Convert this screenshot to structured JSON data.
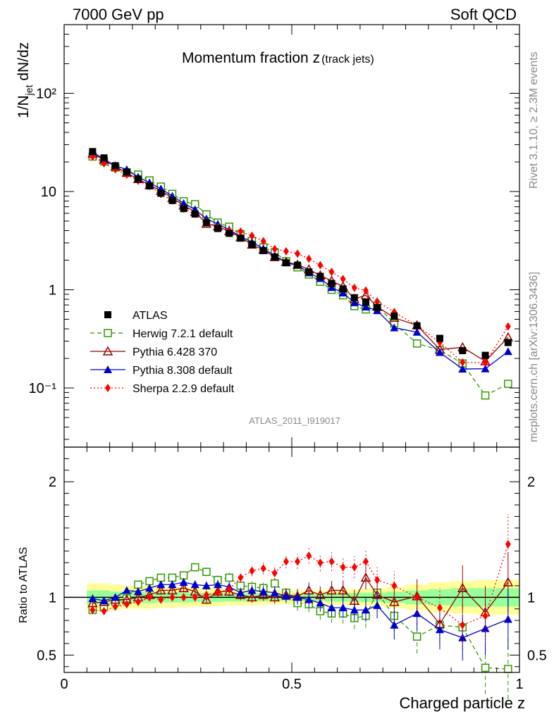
{
  "header": {
    "beam": "7000 GeV pp",
    "group": "Soft QCD"
  },
  "side": {
    "rivet": "Rivet 3.1.10, ≥ 2.3M events",
    "mcplots": "mcplots.cern.ch [arXiv:1306.3436]"
  },
  "chart_data": {
    "type": "scatter",
    "title": "Momentum fraction z",
    "title_sub": "(track jets)",
    "analysis_id": "ATLAS_2011_I919017",
    "ylabel_a": "1/N",
    "ylabel_sub": "jet",
    "ylabel_b": " dN/dz",
    "ratio_ylabel": "Ratio to ATLAS",
    "xlabel": "Charged particle z",
    "xlim": [
      0,
      1
    ],
    "ylim": [
      0.025,
      500
    ],
    "yscale": "log",
    "ratio_ylim": [
      0.35,
      2.3
    ],
    "x_ticks": [
      "0",
      "0.5",
      "1"
    ],
    "y_ticks": [
      "10⁻¹",
      "1",
      "10",
      "10²"
    ],
    "ratio_ticks": [
      "0.5",
      "1",
      "2"
    ],
    "legend_position": "lower-left",
    "x": [
      0.0625,
      0.0875,
      0.1125,
      0.1375,
      0.1625,
      0.1875,
      0.2125,
      0.2375,
      0.2625,
      0.2875,
      0.3125,
      0.3375,
      0.3625,
      0.3875,
      0.4125,
      0.4375,
      0.4625,
      0.4875,
      0.5125,
      0.5375,
      0.5625,
      0.5875,
      0.6125,
      0.6375,
      0.6625,
      0.6875,
      0.725,
      0.775,
      0.825,
      0.875,
      0.925,
      0.975
    ],
    "atlas": {
      "name": "ATLAS",
      "color": "#000000",
      "values": [
        25.5,
        22,
        18.3,
        15.8,
        13.4,
        11.4,
        9.6,
        8.1,
        6.7,
        5.9,
        4.8,
        4.2,
        3.75,
        3.35,
        2.88,
        2.5,
        2.15,
        1.88,
        1.78,
        1.52,
        1.37,
        1.16,
        1.02,
        0.83,
        0.75,
        0.66,
        0.54,
        0.43,
        0.32,
        0.24,
        0.215,
        0.29
      ]
    },
    "series": [
      {
        "name": "Herwig 7.2.1 default",
        "color": "#339900",
        "marker": "open-square",
        "dash": "6,4",
        "ratio": [
          0.89,
          0.92,
          0.96,
          0.99,
          1.11,
          1.14,
          1.17,
          1.17,
          1.19,
          1.26,
          1.22,
          1.15,
          1.17,
          1.1,
          1.09,
          1.08,
          1.12,
          1.04,
          0.95,
          0.94,
          0.88,
          0.86,
          0.86,
          0.82,
          0.84,
          1.04,
          0.84,
          0.66,
          0.76,
          0.74,
          0.39,
          0.38
        ]
      },
      {
        "name": "Pythia 6.428 370",
        "color": "#990000",
        "marker": "open-triangle",
        "dash": "",
        "ratio": [
          0.95,
          0.96,
          0.98,
          0.98,
          1.0,
          1.02,
          1.06,
          1.06,
          1.08,
          1.05,
          0.98,
          1.05,
          1.05,
          1.02,
          1.0,
          1.02,
          1.0,
          1.02,
          1.01,
          1.06,
          1.02,
          1.06,
          1.06,
          0.97,
          1.17,
          1.02,
          0.96,
          1.01,
          0.77,
          1.08,
          0.87,
          1.13
        ]
      },
      {
        "name": "Pythia 8.308 default",
        "color": "#0000cc",
        "marker": "triangle",
        "dash": "",
        "ratio": [
          0.99,
          0.97,
          1.0,
          1.06,
          1.05,
          1.08,
          1.11,
          1.11,
          1.13,
          1.11,
          1.1,
          1.11,
          1.09,
          1.04,
          1.06,
          1.05,
          1.04,
          1.01,
          1.0,
          0.98,
          0.95,
          0.91,
          0.91,
          0.89,
          0.89,
          0.93,
          0.76,
          0.86,
          0.72,
          0.65,
          0.73,
          0.81
        ]
      },
      {
        "name": "Sherpa 2.2.9 default",
        "color": "#ff0000",
        "marker": "diamond",
        "dash": "2,3",
        "ratio": [
          0.89,
          0.88,
          0.92,
          0.94,
          0.96,
          1.0,
          0.98,
          1.0,
          1.0,
          1.0,
          1.02,
          1.04,
          1.07,
          1.17,
          1.23,
          1.25,
          1.21,
          1.31,
          1.31,
          1.36,
          1.3,
          1.31,
          1.26,
          1.26,
          1.31,
          1.15,
          1.1,
          1.0,
          0.91,
          0.76,
          0.84,
          1.46
        ]
      }
    ],
    "band_inner": [
      0.06,
      0.06,
      0.05,
      0.05,
      0.05,
      0.05,
      0.045,
      0.045,
      0.045,
      0.04,
      0.04,
      0.04,
      0.035,
      0.035,
      0.035,
      0.035,
      0.03,
      0.03,
      0.03,
      0.03,
      0.03,
      0.035,
      0.035,
      0.04,
      0.04,
      0.04,
      0.05,
      0.06,
      0.07,
      0.08,
      0.08,
      0.08
    ],
    "band_outer": [
      0.12,
      0.12,
      0.11,
      0.1,
      0.1,
      0.1,
      0.09,
      0.09,
      0.085,
      0.08,
      0.08,
      0.075,
      0.07,
      0.07,
      0.07,
      0.065,
      0.06,
      0.06,
      0.06,
      0.06,
      0.06,
      0.065,
      0.065,
      0.07,
      0.075,
      0.08,
      0.09,
      0.11,
      0.13,
      0.14,
      0.15,
      0.15
    ]
  }
}
